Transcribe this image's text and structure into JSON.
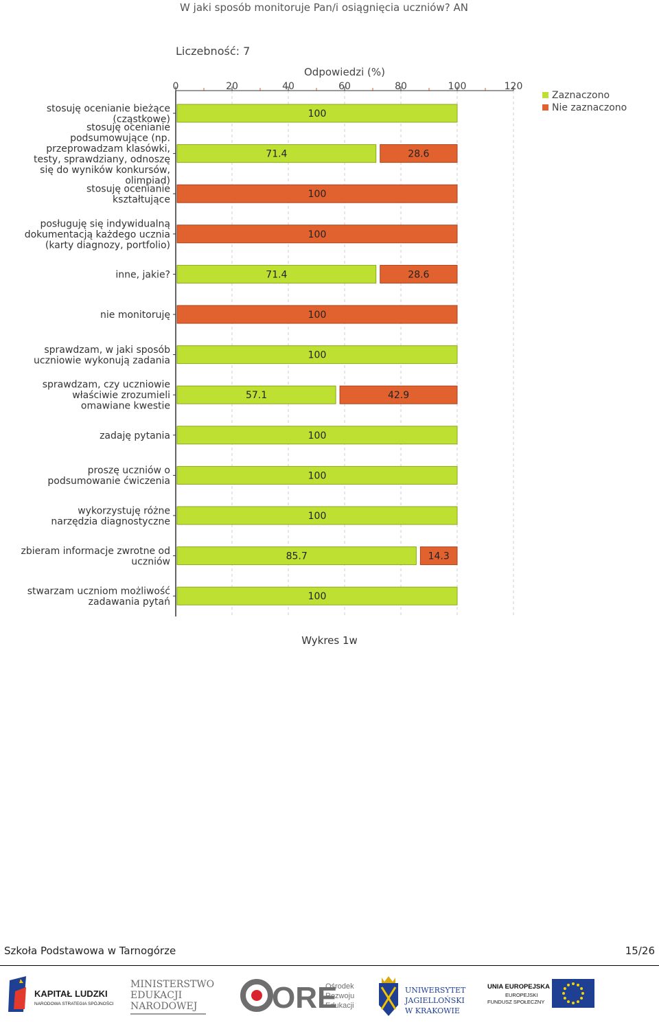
{
  "chart_data": {
    "type": "bar",
    "orientation": "horizontal",
    "stacked": true,
    "title": "W jaki sposób monitoruje Pan/i osiągnięcia uczniów?  AN",
    "subtitle": "Liczebność: 7",
    "xlabel": "Odpowiedzi (%)",
    "xlim": [
      0,
      120
    ],
    "xticks": [
      "0",
      "20",
      "40",
      "60",
      "80",
      "100",
      "120"
    ],
    "grid": true,
    "legend_position": "top-right",
    "categories": [
      [
        "stosuję ocenianie bieżące",
        "(cząstkowe)"
      ],
      [
        "stosuję ocenianie",
        "podsumowujące (np.",
        "przeprowadzam klasówki,",
        "testy, sprawdziany, odnoszę",
        "się do wyników konkursów,",
        "olimpiad)"
      ],
      [
        "stosuję ocenianie",
        "kształtujące"
      ],
      [
        "posługuję się indywidualną",
        "dokumentacją każdego ucznia",
        "(karty diagnozy, portfolio)"
      ],
      [
        "inne, jakie?"
      ],
      [
        "nie monitoruję"
      ],
      [
        "sprawdzam, w jaki sposób",
        "uczniowie wykonują zadania"
      ],
      [
        "sprawdzam, czy uczniowie",
        "właściwie zrozumieli",
        "omawiane kwestie"
      ],
      [
        "zadaję pytania"
      ],
      [
        "proszę uczniów o",
        "podsumowanie ćwiczenia"
      ],
      [
        "wykorzystuję różne",
        "narzędzia diagnostyczne"
      ],
      [
        "zbieram informacje zwrotne od",
        "uczniów"
      ],
      [
        "stwarzam uczniom możliwość",
        "zadawania pytań"
      ]
    ],
    "series": [
      {
        "name": "Zaznaczono",
        "color": "#bde032",
        "values": [
          100,
          71.4,
          0,
          0,
          71.4,
          0,
          100,
          57.1,
          100,
          100,
          100,
          85.7,
          100
        ],
        "labels": [
          "100",
          "71.4",
          "",
          "",
          "71.4",
          "",
          "100",
          "57.1",
          "100",
          "100",
          "100",
          "85.7",
          "100"
        ]
      },
      {
        "name": "Nie zaznaczono",
        "color": "#e2622f",
        "values": [
          0,
          28.6,
          100,
          100,
          28.6,
          100,
          0,
          42.9,
          0,
          0,
          0,
          14.3,
          0
        ],
        "labels": [
          "",
          "28.6",
          "100",
          "100",
          "28.6",
          "100",
          "",
          "42.9",
          "",
          "",
          "",
          "14.3",
          ""
        ]
      }
    ]
  },
  "caption": "Wykres 1w",
  "footer": {
    "school": "Szkoła Podstawowa w Tarnogórze",
    "page": "15/26"
  },
  "logos": {
    "kapital": [
      "KAPITAŁ LUDZKI",
      "NARODOWA STRATEGIA SPÓJNOŚCI"
    ],
    "men": [
      "MINISTERSTWO",
      "EDUKACJI",
      "NARODOWEJ"
    ],
    "ore": [
      "ORE",
      "Ośrodek",
      "Rozwoju",
      "Edukacji"
    ],
    "uj": [
      "UNIWERSYTET",
      "JAGIELLOŃSKI",
      "W KRAKOWIE"
    ],
    "ue": [
      "UNIA EUROPEJSKA",
      "EUROPEJSKI",
      "FUNDUSZ SPOŁECZNY"
    ]
  },
  "colors": {
    "green": "#bde032",
    "orange": "#e2622f"
  }
}
